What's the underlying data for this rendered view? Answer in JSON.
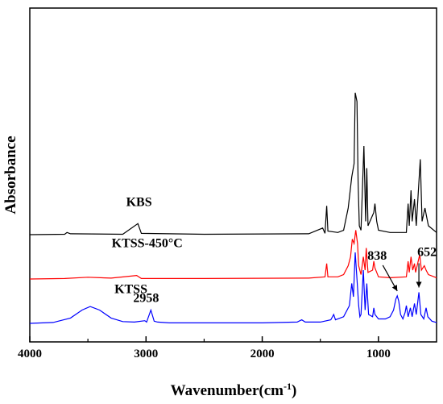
{
  "chart_data": {
    "type": "line",
    "xlabel_main": "Wavenumber(cm",
    "xlabel_sup": "-1",
    "xlabel_close": ")",
    "ylabel": "Absorbance",
    "xlim": [
      4000,
      500
    ],
    "x_reversed": true,
    "x_ticks": [
      4000,
      3000,
      2000,
      1000
    ],
    "y_ticks_shown": false,
    "grid": false,
    "legend": "none",
    "series": [
      {
        "name": "KBS",
        "color": "#000000",
        "baseline": 2.0,
        "points": [
          [
            4000,
            0
          ],
          [
            3700,
            0.01
          ],
          [
            3680,
            0.05
          ],
          [
            3650,
            0.02
          ],
          [
            3200,
            0.01
          ],
          [
            3070,
            0.25
          ],
          [
            3040,
            0.03
          ],
          [
            2500,
            0.01
          ],
          [
            1600,
            0.02
          ],
          [
            1480,
            0.15
          ],
          [
            1460,
            0.03
          ],
          [
            1445,
            0.65
          ],
          [
            1435,
            0.08
          ],
          [
            1350,
            0.05
          ],
          [
            1300,
            0.1
          ],
          [
            1260,
            0.6
          ],
          [
            1230,
            1.3
          ],
          [
            1210,
            1.6
          ],
          [
            1200,
            3.2
          ],
          [
            1185,
            3.0
          ],
          [
            1175,
            1.2
          ],
          [
            1165,
            0.2
          ],
          [
            1150,
            0.1
          ],
          [
            1125,
            2.0
          ],
          [
            1110,
            0.3
          ],
          [
            1100,
            1.5
          ],
          [
            1090,
            0.2
          ],
          [
            1040,
            0.5
          ],
          [
            1030,
            0.7
          ],
          [
            1015,
            0.3
          ],
          [
            1000,
            0.1
          ],
          [
            900,
            0.05
          ],
          [
            760,
            0.05
          ],
          [
            745,
            0.7
          ],
          [
            735,
            0.2
          ],
          [
            720,
            1.0
          ],
          [
            710,
            0.3
          ],
          [
            690,
            0.8
          ],
          [
            675,
            0.2
          ],
          [
            640,
            1.7
          ],
          [
            625,
            0.3
          ],
          [
            600,
            0.6
          ],
          [
            585,
            0.4
          ],
          [
            570,
            0.2
          ],
          [
            500,
            0.05
          ]
        ]
      },
      {
        "name": "KTSS-450°C",
        "color": "#ff0000",
        "baseline": 1.0,
        "points": [
          [
            4000,
            0
          ],
          [
            3700,
            0.01
          ],
          [
            3500,
            0.04
          ],
          [
            3300,
            0.02
          ],
          [
            3080,
            0.08
          ],
          [
            3040,
            0.01
          ],
          [
            2500,
            0.01
          ],
          [
            1600,
            0.02
          ],
          [
            1460,
            0.05
          ],
          [
            1445,
            0.35
          ],
          [
            1435,
            0.05
          ],
          [
            1350,
            0.05
          ],
          [
            1300,
            0.1
          ],
          [
            1260,
            0.3
          ],
          [
            1240,
            0.5
          ],
          [
            1225,
            0.9
          ],
          [
            1210,
            0.8
          ],
          [
            1195,
            1.1
          ],
          [
            1180,
            0.8
          ],
          [
            1170,
            0.3
          ],
          [
            1150,
            0.1
          ],
          [
            1130,
            0.5
          ],
          [
            1115,
            0.2
          ],
          [
            1105,
            0.7
          ],
          [
            1090,
            0.15
          ],
          [
            1050,
            0.2
          ],
          [
            1040,
            0.4
          ],
          [
            1030,
            0.25
          ],
          [
            1015,
            0.15
          ],
          [
            1000,
            0.05
          ],
          [
            900,
            0.03
          ],
          [
            760,
            0.05
          ],
          [
            745,
            0.4
          ],
          [
            735,
            0.15
          ],
          [
            720,
            0.5
          ],
          [
            705,
            0.2
          ],
          [
            690,
            0.35
          ],
          [
            680,
            0.15
          ],
          [
            645,
            0.55
          ],
          [
            630,
            0.2
          ],
          [
            605,
            0.3
          ],
          [
            590,
            0.2
          ],
          [
            570,
            0.1
          ],
          [
            500,
            0.03
          ]
        ]
      },
      {
        "name": "KTSS",
        "color": "#0000ff",
        "baseline": 0.0,
        "points": [
          [
            4000,
            0
          ],
          [
            3800,
            0.02
          ],
          [
            3650,
            0.12
          ],
          [
            3550,
            0.3
          ],
          [
            3480,
            0.38
          ],
          [
            3400,
            0.3
          ],
          [
            3300,
            0.12
          ],
          [
            3200,
            0.04
          ],
          [
            3100,
            0.03
          ],
          [
            3010,
            0.06
          ],
          [
            2995,
            0.03
          ],
          [
            2958,
            0.3
          ],
          [
            2930,
            0.05
          ],
          [
            2900,
            0.03
          ],
          [
            2800,
            0.01
          ],
          [
            2000,
            0.01
          ],
          [
            1700,
            0.03
          ],
          [
            1660,
            0.08
          ],
          [
            1630,
            0.03
          ],
          [
            1500,
            0.03
          ],
          [
            1410,
            0.08
          ],
          [
            1385,
            0.2
          ],
          [
            1370,
            0.08
          ],
          [
            1300,
            0.15
          ],
          [
            1250,
            0.4
          ],
          [
            1230,
            0.9
          ],
          [
            1215,
            0.6
          ],
          [
            1200,
            1.6
          ],
          [
            1185,
            1.0
          ],
          [
            1170,
            0.4
          ],
          [
            1160,
            0.15
          ],
          [
            1150,
            0.2
          ],
          [
            1130,
            1.2
          ],
          [
            1115,
            0.3
          ],
          [
            1100,
            0.9
          ],
          [
            1085,
            0.2
          ],
          [
            1050,
            0.15
          ],
          [
            1040,
            0.35
          ],
          [
            1030,
            0.2
          ],
          [
            1000,
            0.1
          ],
          [
            940,
            0.1
          ],
          [
            900,
            0.15
          ],
          [
            870,
            0.3
          ],
          [
            850,
            0.55
          ],
          [
            838,
            0.62
          ],
          [
            825,
            0.5
          ],
          [
            810,
            0.2
          ],
          [
            790,
            0.1
          ],
          [
            770,
            0.25
          ],
          [
            760,
            0.4
          ],
          [
            745,
            0.15
          ],
          [
            725,
            0.35
          ],
          [
            710,
            0.15
          ],
          [
            690,
            0.45
          ],
          [
            675,
            0.2
          ],
          [
            652,
            0.7
          ],
          [
            635,
            0.2
          ],
          [
            610,
            0.1
          ],
          [
            590,
            0.35
          ],
          [
            575,
            0.15
          ],
          [
            540,
            0.05
          ],
          [
            500,
            0.02
          ]
        ]
      }
    ],
    "annotations": [
      {
        "text": "2958",
        "x": 2958,
        "series": "KTSS",
        "arrow": false
      },
      {
        "text": "838",
        "x": 838,
        "series": "KTSS",
        "arrow": true
      },
      {
        "text": "652",
        "x": 652,
        "series": "KTSS",
        "arrow": true
      }
    ]
  }
}
